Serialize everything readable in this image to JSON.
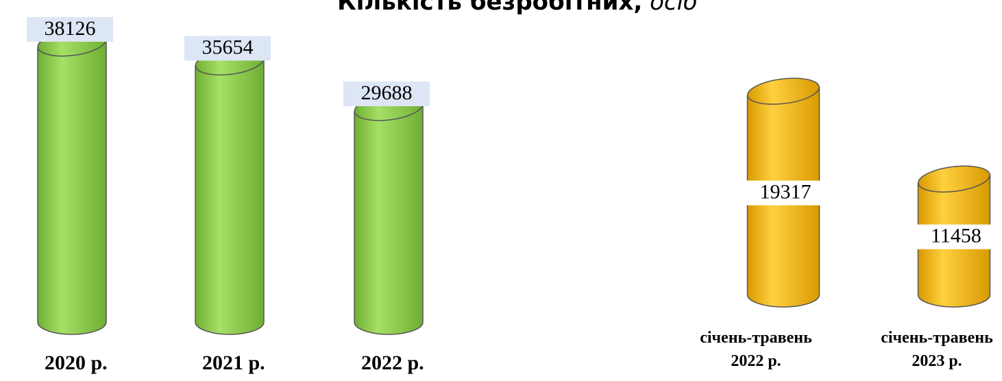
{
  "chart_data": [
    {
      "type": "cylinder",
      "title": "Кількість безробітних,",
      "title_unit": "осіб",
      "categories": [
        "2020 р.",
        "2021 р.",
        "2022 р."
      ],
      "values": [
        38126,
        35654,
        29688
      ],
      "color": "#8fd14f",
      "ylim": [
        0,
        40000
      ]
    },
    {
      "type": "cylinder",
      "categories": [
        "січень-травень 2022 р.",
        "січень-травень 2023 р."
      ],
      "values": [
        19317,
        11458
      ],
      "color": "#f5b800",
      "ylim": [
        0,
        20000
      ]
    }
  ]
}
